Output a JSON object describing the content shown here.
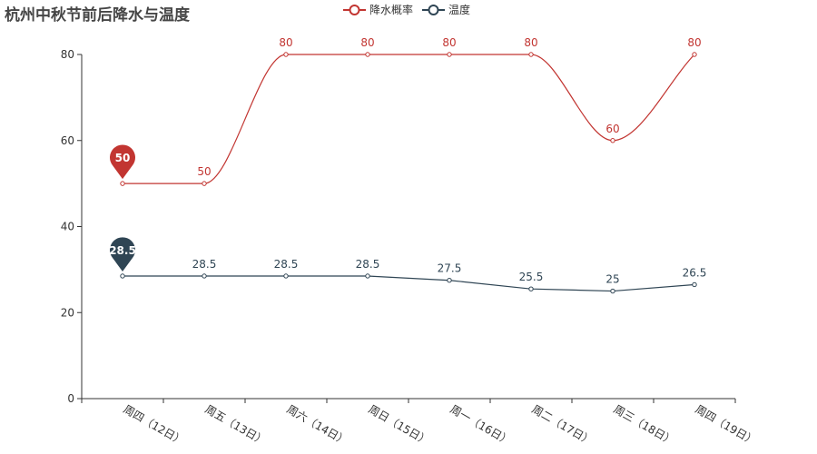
{
  "chart_data": {
    "type": "line",
    "title": "杭州中秋节前后降水与温度",
    "categories": [
      "周四（12日）",
      "周五（13日）",
      "周六（14日）",
      "周日（15日）",
      "周一（16日）",
      "周二（17日）",
      "周三（18日）",
      "周四（19日）"
    ],
    "series": [
      {
        "name": "降水概率",
        "color": "#c23531",
        "smooth": true,
        "values": [
          50,
          50,
          80,
          80,
          80,
          80,
          60,
          80
        ]
      },
      {
        "name": "温度",
        "color": "#2f4554",
        "smooth": false,
        "values": [
          28.5,
          28.5,
          28.5,
          28.5,
          27.5,
          25.5,
          25,
          26.5
        ]
      }
    ],
    "markpoints": [
      {
        "series": 0,
        "index": 0,
        "value": "50",
        "color": "#c23531"
      },
      {
        "series": 1,
        "index": 0,
        "value": "28.5",
        "color": "#2f4554"
      }
    ],
    "ylim": [
      0,
      80
    ],
    "yticks": [
      0,
      20,
      40,
      60,
      80
    ],
    "grid": false,
    "legend_position": "top-center",
    "xlabel": "",
    "ylabel": ""
  }
}
